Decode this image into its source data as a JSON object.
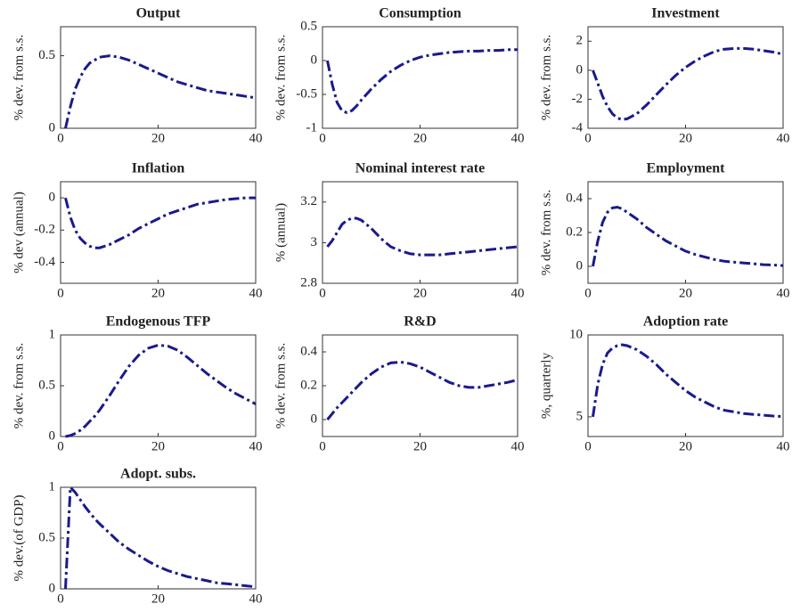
{
  "chart_data": [
    {
      "type": "line",
      "title": "Output",
      "ylabel": "% dev. from s.s.",
      "color": "#1a1a8c",
      "x": [
        1,
        2,
        3,
        4,
        5,
        6,
        7,
        8,
        10,
        12,
        14,
        16,
        18,
        20,
        22,
        24,
        26,
        28,
        30,
        32,
        34,
        36,
        38,
        40
      ],
      "values": [
        0,
        0.15,
        0.27,
        0.35,
        0.41,
        0.45,
        0.47,
        0.49,
        0.5,
        0.49,
        0.47,
        0.44,
        0.41,
        0.38,
        0.35,
        0.32,
        0.3,
        0.28,
        0.26,
        0.25,
        0.24,
        0.23,
        0.22,
        0.21
      ],
      "xlim": [
        0,
        40
      ],
      "xticks": [
        0,
        20,
        40
      ],
      "ylim": [
        0,
        0.7
      ],
      "yticks": [
        0,
        0.5
      ]
    },
    {
      "type": "line",
      "title": "Consumption",
      "ylabel": "% dev. from s.s.",
      "color": "#1a1a8c",
      "x": [
        1,
        2,
        3,
        4,
        5,
        6,
        7,
        8,
        10,
        12,
        14,
        16,
        18,
        20,
        22,
        24,
        26,
        28,
        30,
        32,
        34,
        36,
        38,
        40
      ],
      "values": [
        0,
        -0.35,
        -0.62,
        -0.74,
        -0.77,
        -0.74,
        -0.67,
        -0.58,
        -0.42,
        -0.28,
        -0.16,
        -0.07,
        0,
        0.05,
        0.08,
        0.1,
        0.12,
        0.13,
        0.14,
        0.14,
        0.15,
        0.15,
        0.16,
        0.16
      ],
      "xlim": [
        0,
        40
      ],
      "xticks": [
        0,
        20,
        40
      ],
      "ylim": [
        -1,
        0.5
      ],
      "yticks": [
        -1,
        -0.5,
        0,
        0.5
      ]
    },
    {
      "type": "line",
      "title": "Investment",
      "ylabel": "% dev. from s.s.",
      "color": "#1a1a8c",
      "x": [
        1,
        2,
        3,
        4,
        5,
        6,
        7,
        8,
        10,
        12,
        14,
        16,
        18,
        20,
        22,
        24,
        26,
        28,
        30,
        32,
        34,
        36,
        38,
        40
      ],
      "values": [
        0,
        -0.9,
        -1.8,
        -2.5,
        -3,
        -3.3,
        -3.4,
        -3.35,
        -3,
        -2.4,
        -1.7,
        -1,
        -0.35,
        0.2,
        0.65,
        1,
        1.3,
        1.45,
        1.5,
        1.5,
        1.45,
        1.35,
        1.25,
        1.1
      ],
      "xlim": [
        0,
        40
      ],
      "xticks": [
        0,
        20,
        40
      ],
      "ylim": [
        -4,
        3
      ],
      "yticks": [
        -4,
        -2,
        0,
        2
      ]
    },
    {
      "type": "line",
      "title": "Inflation",
      "ylabel": "% dev (annual)",
      "color": "#1a1a8c",
      "x": [
        1,
        2,
        3,
        4,
        5,
        6,
        7,
        8,
        10,
        12,
        14,
        16,
        18,
        20,
        22,
        24,
        26,
        28,
        30,
        32,
        34,
        36,
        38,
        40
      ],
      "values": [
        0,
        -0.12,
        -0.2,
        -0.25,
        -0.28,
        -0.3,
        -0.31,
        -0.31,
        -0.29,
        -0.26,
        -0.23,
        -0.19,
        -0.16,
        -0.13,
        -0.1,
        -0.08,
        -0.06,
        -0.04,
        -0.03,
        -0.02,
        -0.01,
        -0.005,
        0,
        0
      ],
      "xlim": [
        0,
        40
      ],
      "xticks": [
        0,
        20,
        40
      ],
      "ylim": [
        -0.53,
        0.1
      ],
      "yticks": [
        -0.4,
        -0.2,
        0
      ]
    },
    {
      "type": "line",
      "title": "Nominal interest rate",
      "ylabel": "% (annual)",
      "color": "#1a1a8c",
      "x": [
        1,
        2,
        3,
        4,
        5,
        6,
        7,
        8,
        10,
        12,
        14,
        16,
        18,
        20,
        22,
        24,
        26,
        28,
        30,
        32,
        34,
        36,
        38,
        40
      ],
      "values": [
        2.98,
        3.01,
        3.05,
        3.09,
        3.11,
        3.12,
        3.12,
        3.11,
        3.07,
        3.02,
        2.98,
        2.96,
        2.945,
        2.94,
        2.94,
        2.94,
        2.945,
        2.95,
        2.955,
        2.96,
        2.965,
        2.97,
        2.975,
        2.98
      ],
      "xlim": [
        0,
        40
      ],
      "xticks": [
        0,
        20,
        40
      ],
      "ylim": [
        2.8,
        3.3
      ],
      "yticks": [
        2.8,
        3,
        3.2
      ]
    },
    {
      "type": "line",
      "title": "Employment",
      "ylabel": "% dev. from s.s.",
      "color": "#1a1a8c",
      "x": [
        1,
        2,
        3,
        4,
        5,
        6,
        7,
        8,
        10,
        12,
        14,
        16,
        18,
        20,
        22,
        24,
        26,
        28,
        30,
        32,
        34,
        36,
        38,
        40
      ],
      "values": [
        0,
        0.15,
        0.26,
        0.32,
        0.345,
        0.35,
        0.34,
        0.32,
        0.28,
        0.23,
        0.19,
        0.15,
        0.12,
        0.09,
        0.07,
        0.055,
        0.04,
        0.03,
        0.025,
        0.02,
        0.015,
        0.01,
        0.008,
        0.005
      ],
      "xlim": [
        0,
        40
      ],
      "xticks": [
        0,
        20,
        40
      ],
      "ylim": [
        -0.1,
        0.5
      ],
      "yticks": [
        0,
        0.2,
        0.4
      ]
    },
    {
      "type": "line",
      "title": "Endogenous TFP",
      "ylabel": "% dev. from s.s.",
      "color": "#1a1a8c",
      "x": [
        1,
        2,
        3,
        4,
        5,
        6,
        7,
        8,
        10,
        12,
        14,
        16,
        18,
        20,
        22,
        24,
        26,
        28,
        30,
        32,
        34,
        36,
        38,
        40
      ],
      "values": [
        0,
        0.01,
        0.03,
        0.06,
        0.1,
        0.15,
        0.2,
        0.26,
        0.4,
        0.55,
        0.69,
        0.8,
        0.87,
        0.9,
        0.89,
        0.85,
        0.78,
        0.7,
        0.62,
        0.55,
        0.48,
        0.42,
        0.37,
        0.32
      ],
      "xlim": [
        0,
        40
      ],
      "xticks": [
        0,
        20,
        40
      ],
      "ylim": [
        0,
        1
      ],
      "yticks": [
        0,
        0.5,
        1
      ]
    },
    {
      "type": "line",
      "title": "R&D",
      "ylabel": "% dev. from s.s.",
      "color": "#1a1a8c",
      "x": [
        1,
        2,
        3,
        4,
        5,
        6,
        7,
        8,
        10,
        12,
        14,
        16,
        18,
        20,
        22,
        24,
        26,
        28,
        30,
        32,
        34,
        36,
        38,
        40
      ],
      "values": [
        0,
        0.035,
        0.07,
        0.1,
        0.13,
        0.16,
        0.19,
        0.22,
        0.27,
        0.31,
        0.335,
        0.34,
        0.33,
        0.31,
        0.28,
        0.25,
        0.22,
        0.2,
        0.19,
        0.19,
        0.2,
        0.21,
        0.22,
        0.235
      ],
      "xlim": [
        0,
        40
      ],
      "xticks": [
        0,
        20,
        40
      ],
      "ylim": [
        -0.1,
        0.5
      ],
      "yticks": [
        0,
        0.2,
        0.4
      ]
    },
    {
      "type": "line",
      "title": "Adoption rate",
      "ylabel": "%, quarterly",
      "color": "#1a1a8c",
      "x": [
        1,
        2,
        3,
        4,
        5,
        6,
        7,
        8,
        10,
        12,
        14,
        16,
        18,
        20,
        22,
        24,
        26,
        28,
        30,
        32,
        34,
        36,
        38,
        40
      ],
      "values": [
        5,
        7,
        8.2,
        8.9,
        9.2,
        9.35,
        9.4,
        9.35,
        9.1,
        8.7,
        8.2,
        7.6,
        7.1,
        6.6,
        6.2,
        5.9,
        5.6,
        5.4,
        5.3,
        5.2,
        5.15,
        5.1,
        5.05,
        5.02
      ],
      "xlim": [
        0,
        40
      ],
      "xticks": [
        0,
        20,
        40
      ],
      "ylim": [
        3.8,
        10
      ],
      "yticks": [
        5,
        10
      ]
    },
    {
      "type": "line",
      "title": "Adopt. subs.",
      "ylabel": "% dev.(of GDP)",
      "color": "#1a1a8c",
      "x": [
        1,
        2,
        3,
        4,
        5,
        6,
        7,
        8,
        10,
        12,
        14,
        16,
        18,
        20,
        22,
        24,
        26,
        28,
        30,
        32,
        34,
        36,
        38,
        40
      ],
      "values": [
        0,
        1,
        0.95,
        0.88,
        0.81,
        0.75,
        0.69,
        0.64,
        0.55,
        0.46,
        0.39,
        0.33,
        0.27,
        0.22,
        0.18,
        0.15,
        0.12,
        0.1,
        0.08,
        0.06,
        0.05,
        0.04,
        0.03,
        0.02
      ],
      "xlim": [
        0,
        40
      ],
      "xticks": [
        0,
        20,
        40
      ],
      "ylim": [
        0,
        1
      ],
      "yticks": [
        0,
        0.5,
        1
      ]
    }
  ]
}
